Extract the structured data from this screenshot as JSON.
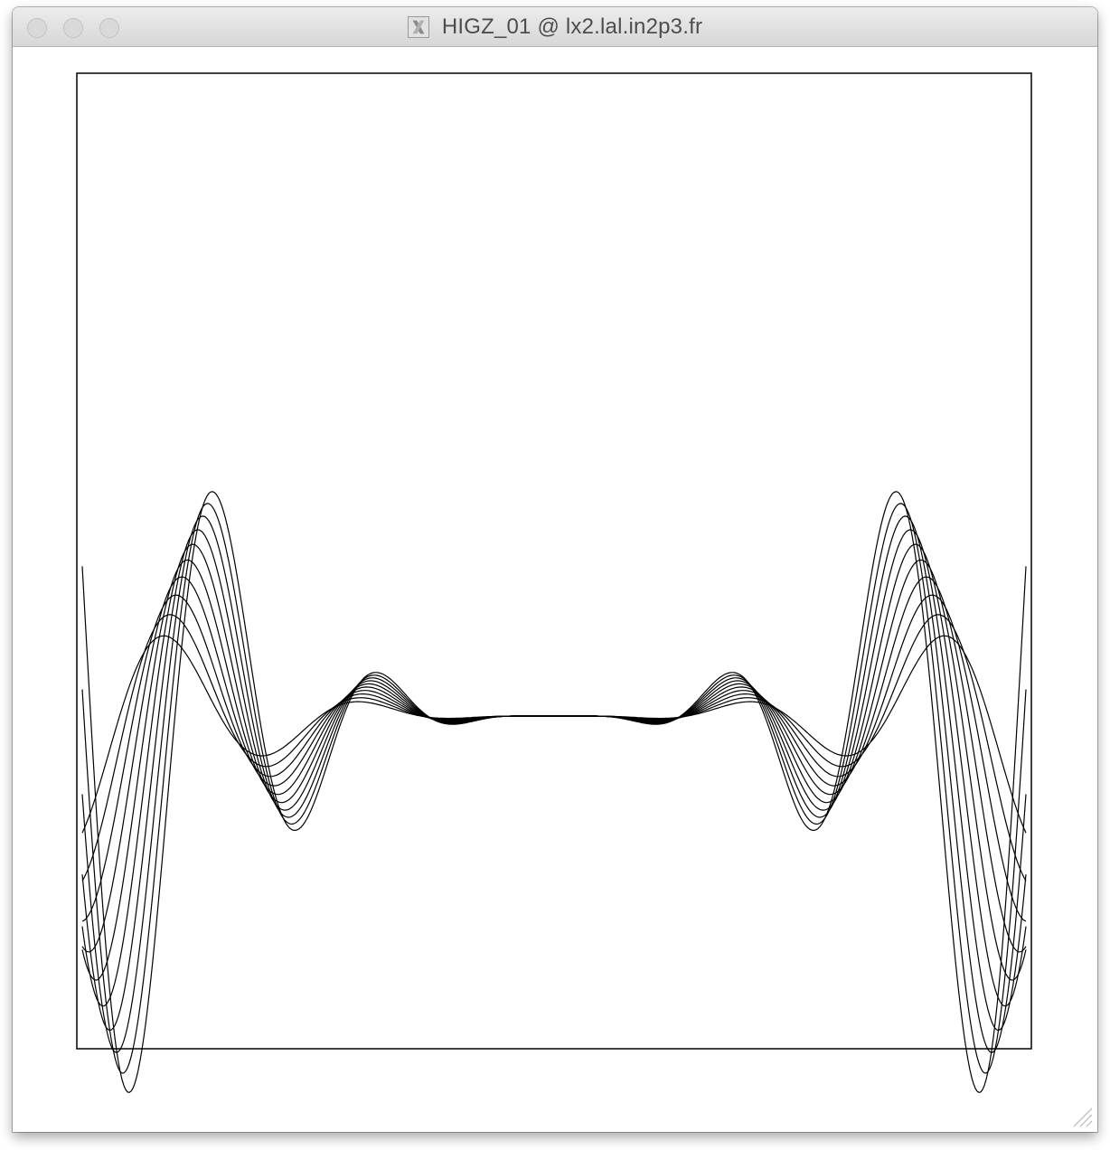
{
  "window": {
    "title": "HIGZ_01 @ lx2.lal.in2p3.fr",
    "icon": "x11-icon",
    "buttons": [
      "close-button",
      "minimize-button",
      "zoom-button"
    ]
  },
  "canvas": {
    "background": "#ffffff",
    "frame_color": "#000000",
    "line_color": "#000000"
  },
  "chart_data": {
    "type": "line",
    "title": "",
    "xlabel": "",
    "ylabel": "",
    "grid": false,
    "axes_labels_shown": false,
    "curve_count": 10,
    "description_of_shape": "family of 10 symmetric oscillating curves with increasing amplitude toward the edges, all sharing a flat near-zero segment in the middle"
  }
}
